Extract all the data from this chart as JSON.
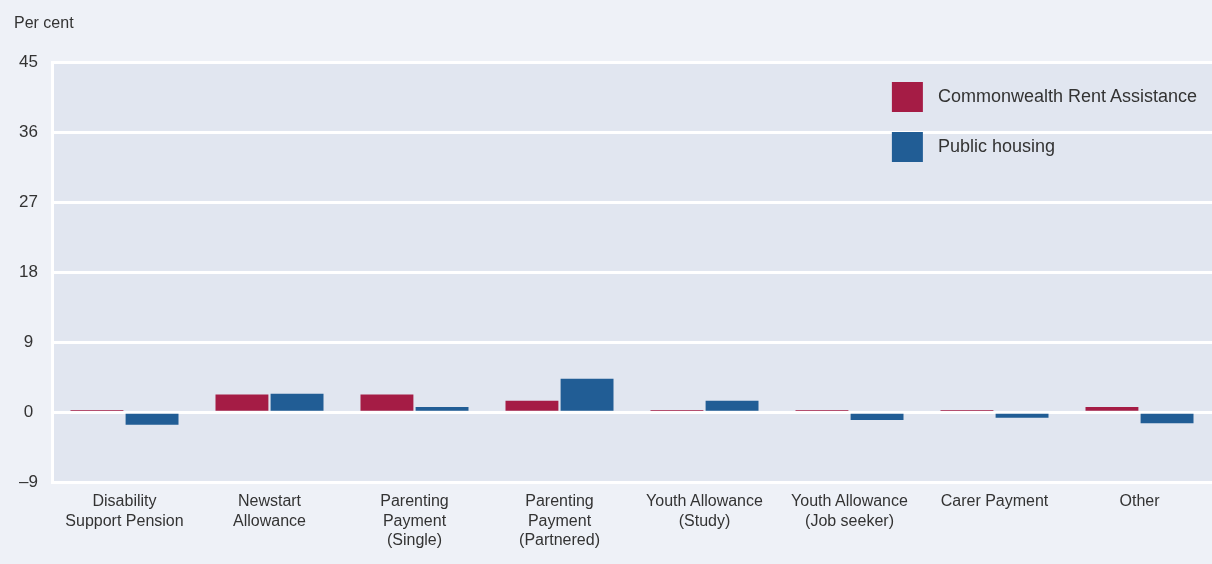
{
  "chart_data": {
    "type": "bar",
    "ylabel": "Per cent",
    "categories": [
      "Disability Support Pension",
      "Newstart Allowance",
      "Parenting Payment (Single)",
      "Parenting Payment (Partnered)",
      "Youth Allowance (Study)",
      "Youth Allowance (Job seeker)",
      "Carer Payment",
      "Other"
    ],
    "series": [
      {
        "name": "Commonwealth Rent Assistance",
        "color": "#a51c45",
        "values": [
          0.3,
          2.3,
          2.3,
          1.5,
          0.3,
          0.3,
          0.3,
          0.7
        ]
      },
      {
        "name": "Public housing",
        "color": "#215d95",
        "values": [
          -1.6,
          2.4,
          0.7,
          4.3,
          1.5,
          -1.0,
          -0.7,
          -1.4
        ]
      }
    ],
    "ylim": [
      -9,
      45
    ],
    "yticks": [
      {
        "value": -9,
        "label": "–9"
      },
      0,
      9,
      18,
      27,
      36,
      45
    ],
    "grid": "y",
    "legend": "top right"
  }
}
